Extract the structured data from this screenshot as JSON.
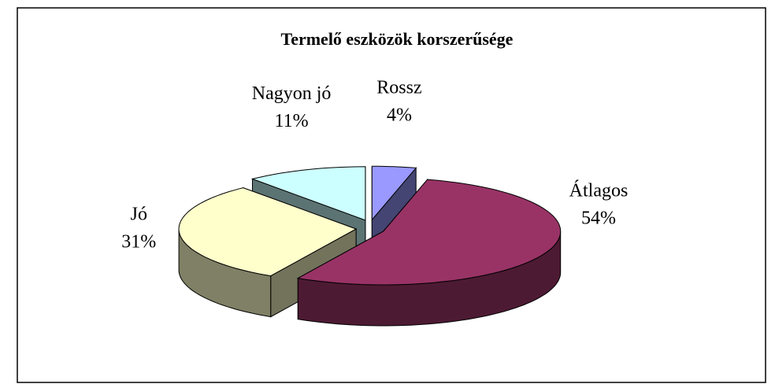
{
  "chart_data": {
    "type": "pie3d",
    "title": "Termelő eszközök korszerűsége",
    "categories": [
      "Rossz",
      "Átlagos",
      "Jó",
      "Nagyon jó"
    ],
    "values": [
      4,
      54,
      31,
      11
    ],
    "value_labels": [
      "4%",
      "54%",
      "31%",
      "11%"
    ],
    "colors": [
      "#9999ff",
      "#993366",
      "#ffffcc",
      "#ccffff"
    ]
  }
}
